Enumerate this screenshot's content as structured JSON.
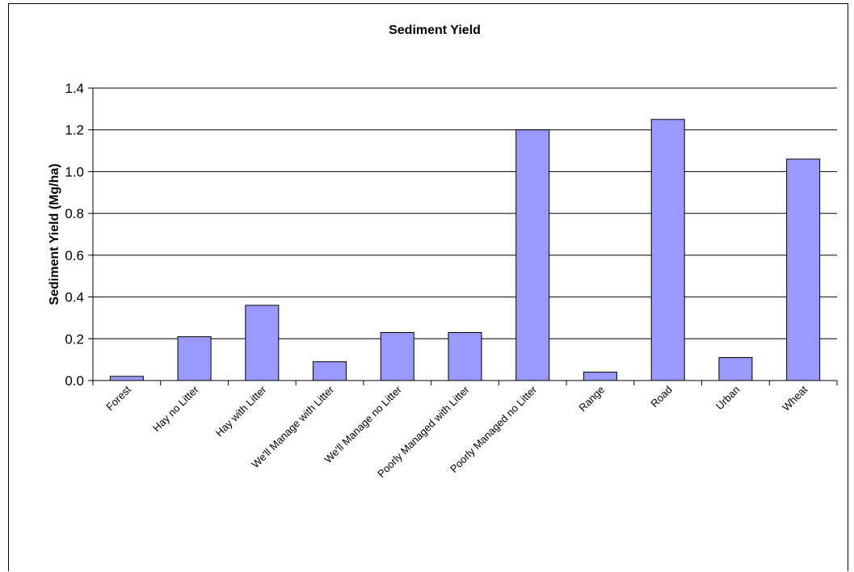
{
  "chart_data": {
    "type": "bar",
    "title": "Sediment Yield",
    "xlabel": "",
    "ylabel": "Sediment Yield (Mg/ha)",
    "categories": [
      "Forest",
      "Hay no Litter",
      "Hay with Litter",
      "We'll Manage with Litter",
      "We'll Manage no Litter",
      "Poorly Managed with Litter",
      "Poorly Managed no Litter",
      "Range",
      "Road",
      "Urban",
      "Wheat"
    ],
    "values": [
      0.02,
      0.21,
      0.36,
      0.09,
      0.23,
      0.23,
      1.2,
      0.04,
      1.25,
      0.11,
      1.06
    ],
    "ylim": [
      0,
      1.4
    ],
    "yticks": [
      "0.0",
      "0.2",
      "0.4",
      "0.6",
      "0.8",
      "1.0",
      "1.2",
      "1.4"
    ],
    "grid": true,
    "legend": "none",
    "bar_color": "#9999ff",
    "bar_edge_color": "#000000"
  }
}
